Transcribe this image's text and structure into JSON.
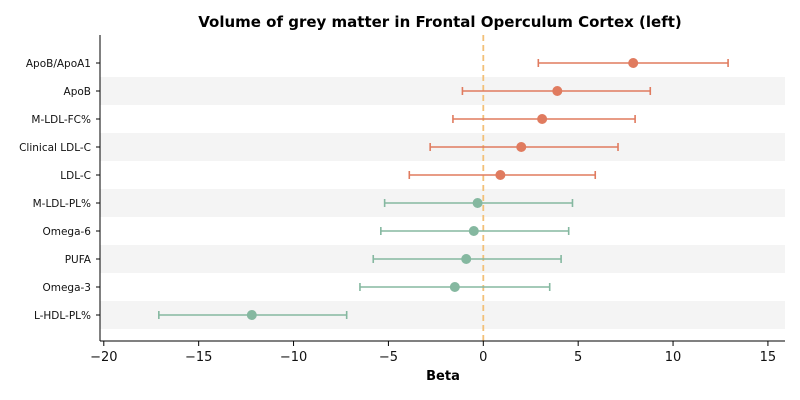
{
  "chart_data": {
    "type": "forest",
    "title": "Volume of grey matter in Frontal Operculum Cortex (left)",
    "xlabel": "Beta",
    "ylabel": "",
    "xlim": [
      -20.2,
      15.9
    ],
    "xticks": [
      -20,
      -15,
      -10,
      -5,
      0,
      5,
      10,
      15
    ],
    "xtick_labels": [
      "−20",
      "−15",
      "−10",
      "−5",
      "0",
      "5",
      "10",
      "15"
    ],
    "reference_line": {
      "x": 0,
      "style": "dashed",
      "color": "#f2c078"
    },
    "band_color": "#f4f4f4",
    "colors": {
      "positive": "#e07b5f",
      "negative": "#85b8a0"
    },
    "rows": [
      {
        "label": "ApoB/ApoA1",
        "beta": 7.9,
        "lower": 2.9,
        "upper": 12.9,
        "group": "positive"
      },
      {
        "label": "ApoB",
        "beta": 3.9,
        "lower": -1.1,
        "upper": 8.8,
        "group": "positive"
      },
      {
        "label": "M-LDL-FC%",
        "beta": 3.1,
        "lower": -1.6,
        "upper": 8.0,
        "group": "positive"
      },
      {
        "label": "Clinical LDL-C",
        "beta": 2.0,
        "lower": -2.8,
        "upper": 7.1,
        "group": "positive"
      },
      {
        "label": "LDL-C",
        "beta": 0.9,
        "lower": -3.9,
        "upper": 5.9,
        "group": "positive"
      },
      {
        "label": "M-LDL-PL%",
        "beta": -0.3,
        "lower": -5.2,
        "upper": 4.7,
        "group": "negative"
      },
      {
        "label": "Omega-6",
        "beta": -0.5,
        "lower": -5.4,
        "upper": 4.5,
        "group": "negative"
      },
      {
        "label": "PUFA",
        "beta": -0.9,
        "lower": -5.8,
        "upper": 4.1,
        "group": "negative"
      },
      {
        "label": "Omega-3",
        "beta": -1.5,
        "lower": -6.5,
        "upper": 3.5,
        "group": "negative"
      },
      {
        "label": "L-HDL-PL%",
        "beta": -12.2,
        "lower": -17.1,
        "upper": -7.2,
        "group": "negative"
      }
    ]
  }
}
